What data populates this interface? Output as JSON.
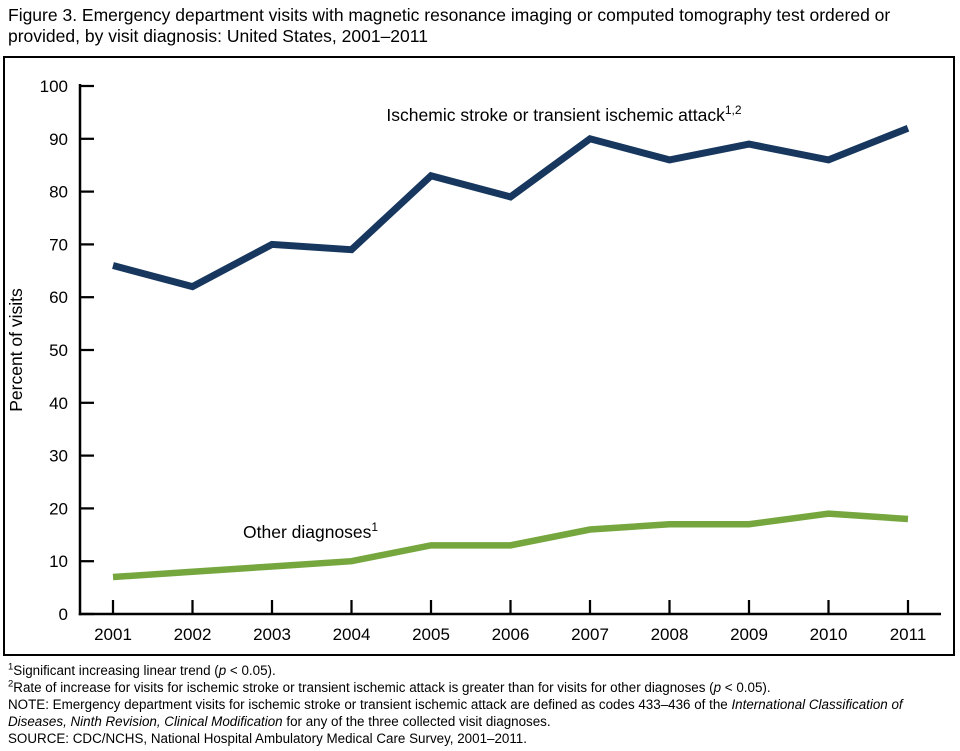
{
  "title": "Figure 3. Emergency department visits with magnetic resonance imaging or computed tomography test ordered or provided, by visit diagnosis: United States, 2001–2011",
  "chart_data": {
    "type": "line",
    "title": "",
    "xlabel": "",
    "ylabel": "Percent of visits",
    "ylim": [
      0,
      100
    ],
    "ytick_step": 10,
    "grid": false,
    "legend": "inline-labels",
    "x": [
      2001,
      2002,
      2003,
      2004,
      2005,
      2006,
      2007,
      2008,
      2009,
      2010,
      2011
    ],
    "series": [
      {
        "name": "Ischemic stroke or transient ischemic attack",
        "sup": "1,2",
        "color": "#17375e",
        "values": [
          66,
          62,
          70,
          69,
          83,
          79,
          90,
          86,
          89,
          86,
          92
        ]
      },
      {
        "name": "Other diagnoses",
        "sup": "1",
        "color": "#76a73f",
        "values": [
          7,
          8,
          9,
          10,
          13,
          13,
          16,
          17,
          17,
          19,
          18
        ]
      }
    ],
    "axis_color": "#000000",
    "frame_color": "#000000"
  },
  "footnotes": [
    [
      {
        "t": "1",
        "sup": true
      },
      {
        "t": "Significant increasing linear trend ("
      },
      {
        "t": "p",
        "i": true
      },
      {
        "t": " < 0.05)."
      }
    ],
    [
      {
        "t": "2",
        "sup": true
      },
      {
        "t": "Rate of increase for visits for ischemic stroke or transient ischemic attack is greater than for visits for other diagnoses ("
      },
      {
        "t": "p",
        "i": true
      },
      {
        "t": " < 0.05)."
      }
    ],
    [
      {
        "t": "NOTE: Emergency department visits for ischemic stroke or transient ischemic attack are defined as codes 433–436 of the "
      },
      {
        "t": "International Classification of Diseases, Ninth Revision, Clinical Modification",
        "i": true
      },
      {
        "t": " for any of the three collected visit diagnoses."
      }
    ],
    [
      {
        "t": "SOURCE: CDC/NCHS, National Hospital Ambulatory Medical Care Survey, 2001–2011."
      }
    ]
  ]
}
